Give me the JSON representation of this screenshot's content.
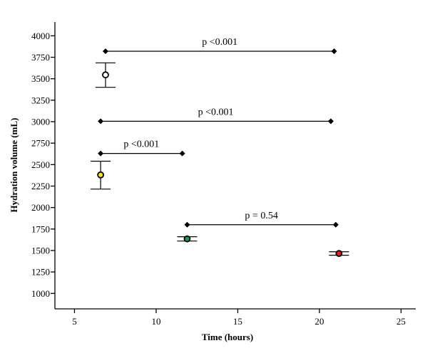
{
  "chart_data": {
    "type": "scatter",
    "title": "",
    "xlabel": "Time (hours)",
    "ylabel": "Hydration volume (mL)",
    "xlim": [
      3.8,
      25.9
    ],
    "ylim": [
      820,
      4160
    ],
    "xticks": [
      5,
      10,
      15,
      20,
      25
    ],
    "yticks": [
      1000,
      1250,
      1500,
      1750,
      2000,
      2250,
      2500,
      2750,
      3000,
      3250,
      3500,
      3750,
      4000
    ],
    "grid": false,
    "points": [
      {
        "x": 6.9,
        "y": 3545,
        "err_low": 3400,
        "err_high": 3685,
        "color": "#ffffff"
      },
      {
        "x": 6.6,
        "y": 2380,
        "err_low": 2215,
        "err_high": 2540,
        "color": "#f5e61a"
      },
      {
        "x": 11.9,
        "y": 1635,
        "err_low": 1610,
        "err_high": 1660,
        "color": "#1a9850"
      },
      {
        "x": 21.2,
        "y": 1465,
        "err_low": 1445,
        "err_high": 1485,
        "color": "#e31a1c"
      }
    ],
    "annotations": [
      {
        "label": "p <0.001",
        "x1": 6.9,
        "x2": 20.9,
        "y": 3820
      },
      {
        "label": "p <0.001",
        "x1": 6.6,
        "x2": 20.7,
        "y": 3005
      },
      {
        "label": "p <0.001",
        "x1": 6.6,
        "x2": 11.6,
        "y": 2630
      },
      {
        "label": "p = 0.54",
        "x1": 11.9,
        "x2": 21.0,
        "y": 1800
      }
    ]
  }
}
